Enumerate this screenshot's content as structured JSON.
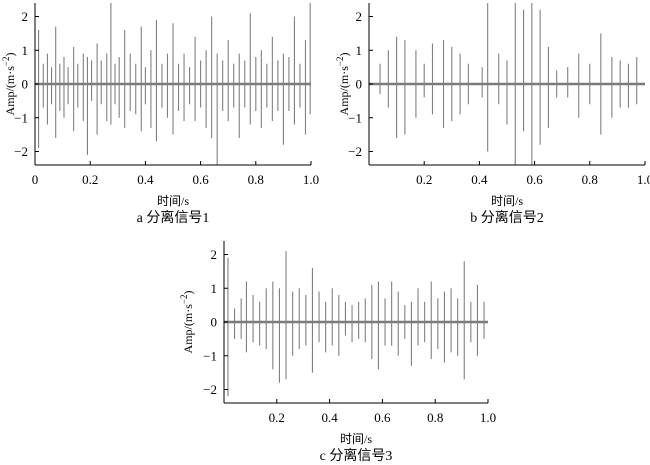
{
  "chart_data": [
    {
      "type": "line",
      "caption": "a 分离信号1",
      "xlabel": "时间/s",
      "ylabel_main": "Amp/(m·s",
      "ylabel_sup": "−2",
      "ylabel_close": ")",
      "xlim": [
        0,
        1.0
      ],
      "ylim": [
        -2.4,
        2.4
      ],
      "xticks": [
        0,
        0.2,
        0.4,
        0.6,
        0.8,
        1.0
      ],
      "xticklabels": [
        "0",
        "0.2",
        "0.4",
        "0.6",
        "0.8",
        "1.0"
      ],
      "yticks": [
        2,
        1,
        0,
        -1,
        -2
      ],
      "yticklabels": [
        "2",
        "1",
        "0",
        "−1",
        "−2"
      ],
      "line_color": "#808080",
      "spikes": [
        {
          "t": 0.013,
          "v": 1.6
        },
        {
          "t": 0.013,
          "v": -1.9
        },
        {
          "t": 0.03,
          "v": 0.6
        },
        {
          "t": 0.03,
          "v": -0.7
        },
        {
          "t": 0.045,
          "v": 0.9
        },
        {
          "t": 0.045,
          "v": -1.2
        },
        {
          "t": 0.06,
          "v": 0.5
        },
        {
          "t": 0.06,
          "v": -0.6
        },
        {
          "t": 0.075,
          "v": 1.7
        },
        {
          "t": 0.075,
          "v": -1.6
        },
        {
          "t": 0.09,
          "v": 0.6
        },
        {
          "t": 0.09,
          "v": -0.8
        },
        {
          "t": 0.105,
          "v": 0.8
        },
        {
          "t": 0.105,
          "v": -1.0
        },
        {
          "t": 0.12,
          "v": 0.5
        },
        {
          "t": 0.12,
          "v": -0.6
        },
        {
          "t": 0.14,
          "v": 1.1
        },
        {
          "t": 0.14,
          "v": -1.4
        },
        {
          "t": 0.155,
          "v": 0.6
        },
        {
          "t": 0.155,
          "v": -0.7
        },
        {
          "t": 0.175,
          "v": 0.9
        },
        {
          "t": 0.175,
          "v": -1.1
        },
        {
          "t": 0.19,
          "v": 0.8
        },
        {
          "t": 0.19,
          "v": -2.1
        },
        {
          "t": 0.205,
          "v": 0.7
        },
        {
          "t": 0.205,
          "v": -0.5
        },
        {
          "t": 0.225,
          "v": 1.2
        },
        {
          "t": 0.225,
          "v": -1.5
        },
        {
          "t": 0.24,
          "v": 0.7
        },
        {
          "t": 0.24,
          "v": -0.6
        },
        {
          "t": 0.26,
          "v": 0.9
        },
        {
          "t": 0.26,
          "v": -1.1
        },
        {
          "t": 0.275,
          "v": 2.4
        },
        {
          "t": 0.275,
          "v": -1.2
        },
        {
          "t": 0.29,
          "v": 0.6
        },
        {
          "t": 0.29,
          "v": -0.6
        },
        {
          "t": 0.305,
          "v": 0.8
        },
        {
          "t": 0.305,
          "v": -1.0
        },
        {
          "t": 0.325,
          "v": 1.6
        },
        {
          "t": 0.325,
          "v": -1.3
        },
        {
          "t": 0.345,
          "v": 0.9
        },
        {
          "t": 0.345,
          "v": -0.8
        },
        {
          "t": 0.365,
          "v": 0.6
        },
        {
          "t": 0.365,
          "v": -0.9
        },
        {
          "t": 0.385,
          "v": 1.7
        },
        {
          "t": 0.385,
          "v": -1.4
        },
        {
          "t": 0.4,
          "v": 0.5
        },
        {
          "t": 0.4,
          "v": -0.6
        },
        {
          "t": 0.42,
          "v": 1.0
        },
        {
          "t": 0.42,
          "v": -1.3
        },
        {
          "t": 0.44,
          "v": 1.9
        },
        {
          "t": 0.44,
          "v": -1.7
        },
        {
          "t": 0.46,
          "v": 0.6
        },
        {
          "t": 0.46,
          "v": -0.7
        },
        {
          "t": 0.48,
          "v": 0.9
        },
        {
          "t": 0.48,
          "v": -1.0
        },
        {
          "t": 0.5,
          "v": 1.8
        },
        {
          "t": 0.5,
          "v": -1.5
        },
        {
          "t": 0.52,
          "v": 0.6
        },
        {
          "t": 0.52,
          "v": -0.8
        },
        {
          "t": 0.54,
          "v": 0.9
        },
        {
          "t": 0.54,
          "v": -1.1
        },
        {
          "t": 0.56,
          "v": 0.5
        },
        {
          "t": 0.56,
          "v": -0.6
        },
        {
          "t": 0.58,
          "v": 1.4
        },
        {
          "t": 0.58,
          "v": -1.1
        },
        {
          "t": 0.6,
          "v": 0.7
        },
        {
          "t": 0.6,
          "v": -0.7
        },
        {
          "t": 0.62,
          "v": 1.0
        },
        {
          "t": 0.62,
          "v": -1.3
        },
        {
          "t": 0.64,
          "v": 2.0
        },
        {
          "t": 0.64,
          "v": -1.6
        },
        {
          "t": 0.66,
          "v": 0.9
        },
        {
          "t": 0.66,
          "v": -2.4
        },
        {
          "t": 0.68,
          "v": 0.7
        },
        {
          "t": 0.68,
          "v": -0.8
        },
        {
          "t": 0.7,
          "v": 1.3
        },
        {
          "t": 0.7,
          "v": -1.1
        },
        {
          "t": 0.72,
          "v": 0.6
        },
        {
          "t": 0.72,
          "v": -0.7
        },
        {
          "t": 0.74,
          "v": 0.9
        },
        {
          "t": 0.74,
          "v": -1.6
        },
        {
          "t": 0.76,
          "v": 0.7
        },
        {
          "t": 0.76,
          "v": -0.7
        },
        {
          "t": 0.78,
          "v": 2.1
        },
        {
          "t": 0.78,
          "v": -1.2
        },
        {
          "t": 0.8,
          "v": 0.8
        },
        {
          "t": 0.8,
          "v": -0.8
        },
        {
          "t": 0.82,
          "v": 1.0
        },
        {
          "t": 0.82,
          "v": -1.3
        },
        {
          "t": 0.84,
          "v": 0.6
        },
        {
          "t": 0.84,
          "v": -0.7
        },
        {
          "t": 0.86,
          "v": 1.4
        },
        {
          "t": 0.86,
          "v": -1.1
        },
        {
          "t": 0.88,
          "v": 0.7
        },
        {
          "t": 0.88,
          "v": -0.8
        },
        {
          "t": 0.9,
          "v": 0.9
        },
        {
          "t": 0.9,
          "v": -1.8
        },
        {
          "t": 0.92,
          "v": 0.8
        },
        {
          "t": 0.92,
          "v": -0.8
        },
        {
          "t": 0.94,
          "v": 2.0
        },
        {
          "t": 0.94,
          "v": -1.2
        },
        {
          "t": 0.96,
          "v": 0.6
        },
        {
          "t": 0.96,
          "v": -0.7
        },
        {
          "t": 0.98,
          "v": 1.3
        },
        {
          "t": 0.98,
          "v": -1.5
        },
        {
          "t": 0.997,
          "v": 2.4
        },
        {
          "t": 0.997,
          "v": -0.9
        }
      ]
    },
    {
      "type": "line",
      "caption": "b 分离信号2",
      "xlabel": "时间/s",
      "ylabel_main": "Amp/(m·s",
      "ylabel_sup": "−2",
      "ylabel_close": ")",
      "xlim": [
        0,
        1.0
      ],
      "ylim": [
        -2.4,
        2.4
      ],
      "xticks": [
        0.2,
        0.4,
        0.6,
        0.8,
        1.0
      ],
      "xticklabels": [
        "0.2",
        "0.4",
        "0.6",
        "0.8",
        "1.0"
      ],
      "yticks": [
        2,
        1,
        0,
        -1,
        -2
      ],
      "yticklabels": [
        "2",
        "1",
        "0",
        "−1",
        "−2"
      ],
      "line_color": "#808080",
      "spikes": [
        {
          "t": 0.04,
          "v": 0.6
        },
        {
          "t": 0.04,
          "v": -0.3
        },
        {
          "t": 0.07,
          "v": 1.0
        },
        {
          "t": 0.07,
          "v": -0.7
        },
        {
          "t": 0.1,
          "v": 1.4
        },
        {
          "t": 0.1,
          "v": -1.6
        },
        {
          "t": 0.13,
          "v": 1.3
        },
        {
          "t": 0.13,
          "v": -1.5
        },
        {
          "t": 0.17,
          "v": 1.0
        },
        {
          "t": 0.17,
          "v": -1.0
        },
        {
          "t": 0.2,
          "v": 0.6
        },
        {
          "t": 0.2,
          "v": -0.4
        },
        {
          "t": 0.23,
          "v": 1.2
        },
        {
          "t": 0.23,
          "v": -0.9
        },
        {
          "t": 0.27,
          "v": 1.3
        },
        {
          "t": 0.27,
          "v": -1.3
        },
        {
          "t": 0.3,
          "v": 1.1
        },
        {
          "t": 0.3,
          "v": -1.1
        },
        {
          "t": 0.33,
          "v": 0.9
        },
        {
          "t": 0.33,
          "v": -0.9
        },
        {
          "t": 0.36,
          "v": 0.6
        },
        {
          "t": 0.36,
          "v": -0.6
        },
        {
          "t": 0.41,
          "v": 0.5
        },
        {
          "t": 0.41,
          "v": -0.4
        },
        {
          "t": 0.43,
          "v": 2.4
        },
        {
          "t": 0.43,
          "v": -2.0
        },
        {
          "t": 0.47,
          "v": 0.9
        },
        {
          "t": 0.47,
          "v": -0.6
        },
        {
          "t": 0.5,
          "v": 0.7
        },
        {
          "t": 0.5,
          "v": -1.2
        },
        {
          "t": 0.53,
          "v": 2.4
        },
        {
          "t": 0.53,
          "v": -2.4
        },
        {
          "t": 0.56,
          "v": 2.2
        },
        {
          "t": 0.56,
          "v": -1.4
        },
        {
          "t": 0.59,
          "v": 2.4
        },
        {
          "t": 0.59,
          "v": -2.4
        },
        {
          "t": 0.62,
          "v": 2.2
        },
        {
          "t": 0.62,
          "v": -1.8
        },
        {
          "t": 0.65,
          "v": 1.1
        },
        {
          "t": 0.65,
          "v": -1.3
        },
        {
          "t": 0.68,
          "v": 0.4
        },
        {
          "t": 0.68,
          "v": -0.4
        },
        {
          "t": 0.72,
          "v": 0.5
        },
        {
          "t": 0.72,
          "v": -0.4
        },
        {
          "t": 0.76,
          "v": 0.9
        },
        {
          "t": 0.76,
          "v": -1.0
        },
        {
          "t": 0.8,
          "v": 0.6
        },
        {
          "t": 0.8,
          "v": -0.6
        },
        {
          "t": 0.84,
          "v": 1.5
        },
        {
          "t": 0.84,
          "v": -1.5
        },
        {
          "t": 0.88,
          "v": 0.8
        },
        {
          "t": 0.88,
          "v": -1.0
        },
        {
          "t": 0.91,
          "v": 0.7
        },
        {
          "t": 0.91,
          "v": -0.7
        },
        {
          "t": 0.94,
          "v": 0.6
        },
        {
          "t": 0.94,
          "v": -0.7
        },
        {
          "t": 0.97,
          "v": 0.8
        },
        {
          "t": 0.97,
          "v": -0.6
        }
      ]
    },
    {
      "type": "line",
      "caption": "c 分离信号3",
      "xlabel": "时间/s",
      "ylabel_main": "Amp/(m·s",
      "ylabel_sup": "−2",
      "ylabel_close": ")",
      "xlim": [
        0,
        1.0
      ],
      "ylim": [
        -2.4,
        2.4
      ],
      "xticks": [
        0.2,
        0.4,
        0.6,
        0.8,
        1.0
      ],
      "xticklabels": [
        "0.2",
        "0.4",
        "0.6",
        "0.8",
        "1.0"
      ],
      "yticks": [
        2,
        1,
        0,
        -1,
        -2
      ],
      "yticklabels": [
        "2",
        "1",
        "0",
        "−1",
        "−2"
      ],
      "line_color": "#808080",
      "spikes": [
        {
          "t": 0.015,
          "v": 1.9
        },
        {
          "t": 0.015,
          "v": -2.2
        },
        {
          "t": 0.04,
          "v": 0.4
        },
        {
          "t": 0.04,
          "v": -0.5
        },
        {
          "t": 0.065,
          "v": 0.7
        },
        {
          "t": 0.065,
          "v": -0.5
        },
        {
          "t": 0.085,
          "v": 1.2
        },
        {
          "t": 0.085,
          "v": -0.9
        },
        {
          "t": 0.11,
          "v": 0.8
        },
        {
          "t": 0.11,
          "v": -0.6
        },
        {
          "t": 0.135,
          "v": 0.6
        },
        {
          "t": 0.135,
          "v": -0.7
        },
        {
          "t": 0.16,
          "v": 1.0
        },
        {
          "t": 0.16,
          "v": -0.8
        },
        {
          "t": 0.185,
          "v": 1.2
        },
        {
          "t": 0.185,
          "v": -1.4
        },
        {
          "t": 0.21,
          "v": 1.0
        },
        {
          "t": 0.21,
          "v": -1.8
        },
        {
          "t": 0.235,
          "v": 2.1
        },
        {
          "t": 0.235,
          "v": -1.7
        },
        {
          "t": 0.26,
          "v": 0.9
        },
        {
          "t": 0.26,
          "v": -1.0
        },
        {
          "t": 0.285,
          "v": 1.0
        },
        {
          "t": 0.285,
          "v": -0.8
        },
        {
          "t": 0.31,
          "v": 0.8
        },
        {
          "t": 0.31,
          "v": -0.7
        },
        {
          "t": 0.335,
          "v": 1.6
        },
        {
          "t": 0.335,
          "v": -1.5
        },
        {
          "t": 0.36,
          "v": 0.9
        },
        {
          "t": 0.36,
          "v": -0.6
        },
        {
          "t": 0.385,
          "v": 0.6
        },
        {
          "t": 0.385,
          "v": -0.9
        },
        {
          "t": 0.41,
          "v": 1.0
        },
        {
          "t": 0.41,
          "v": -0.7
        },
        {
          "t": 0.435,
          "v": 0.8
        },
        {
          "t": 0.435,
          "v": -1.0
        },
        {
          "t": 0.46,
          "v": 0.6
        },
        {
          "t": 0.46,
          "v": -0.4
        },
        {
          "t": 0.485,
          "v": 0.5
        },
        {
          "t": 0.485,
          "v": -0.6
        },
        {
          "t": 0.51,
          "v": 0.6
        },
        {
          "t": 0.51,
          "v": -0.5
        },
        {
          "t": 0.535,
          "v": 0.7
        },
        {
          "t": 0.535,
          "v": -0.6
        },
        {
          "t": 0.56,
          "v": 1.1
        },
        {
          "t": 0.56,
          "v": -1.1
        },
        {
          "t": 0.585,
          "v": 1.2
        },
        {
          "t": 0.585,
          "v": -1.4
        },
        {
          "t": 0.61,
          "v": 0.7
        },
        {
          "t": 0.61,
          "v": -0.7
        },
        {
          "t": 0.635,
          "v": 1.2
        },
        {
          "t": 0.635,
          "v": -0.7
        },
        {
          "t": 0.66,
          "v": 0.9
        },
        {
          "t": 0.66,
          "v": -1.0
        },
        {
          "t": 0.685,
          "v": 0.5
        },
        {
          "t": 0.685,
          "v": -0.5
        },
        {
          "t": 0.71,
          "v": 0.6
        },
        {
          "t": 0.71,
          "v": -1.3
        },
        {
          "t": 0.735,
          "v": 1.0
        },
        {
          "t": 0.735,
          "v": -0.7
        },
        {
          "t": 0.76,
          "v": 0.6
        },
        {
          "t": 0.76,
          "v": -0.6
        },
        {
          "t": 0.785,
          "v": 1.2
        },
        {
          "t": 0.785,
          "v": -1.1
        },
        {
          "t": 0.81,
          "v": 0.7
        },
        {
          "t": 0.81,
          "v": -0.8
        },
        {
          "t": 0.835,
          "v": 0.9
        },
        {
          "t": 0.835,
          "v": -1.2
        },
        {
          "t": 0.86,
          "v": 1.0
        },
        {
          "t": 0.86,
          "v": -0.9
        },
        {
          "t": 0.885,
          "v": 0.7
        },
        {
          "t": 0.885,
          "v": -1.0
        },
        {
          "t": 0.91,
          "v": 1.8
        },
        {
          "t": 0.91,
          "v": -1.7
        },
        {
          "t": 0.935,
          "v": 0.6
        },
        {
          "t": 0.935,
          "v": -0.6
        },
        {
          "t": 0.96,
          "v": 1.1
        },
        {
          "t": 0.96,
          "v": -1.0
        },
        {
          "t": 0.985,
          "v": 0.6
        },
        {
          "t": 0.985,
          "v": -0.5
        }
      ]
    }
  ]
}
